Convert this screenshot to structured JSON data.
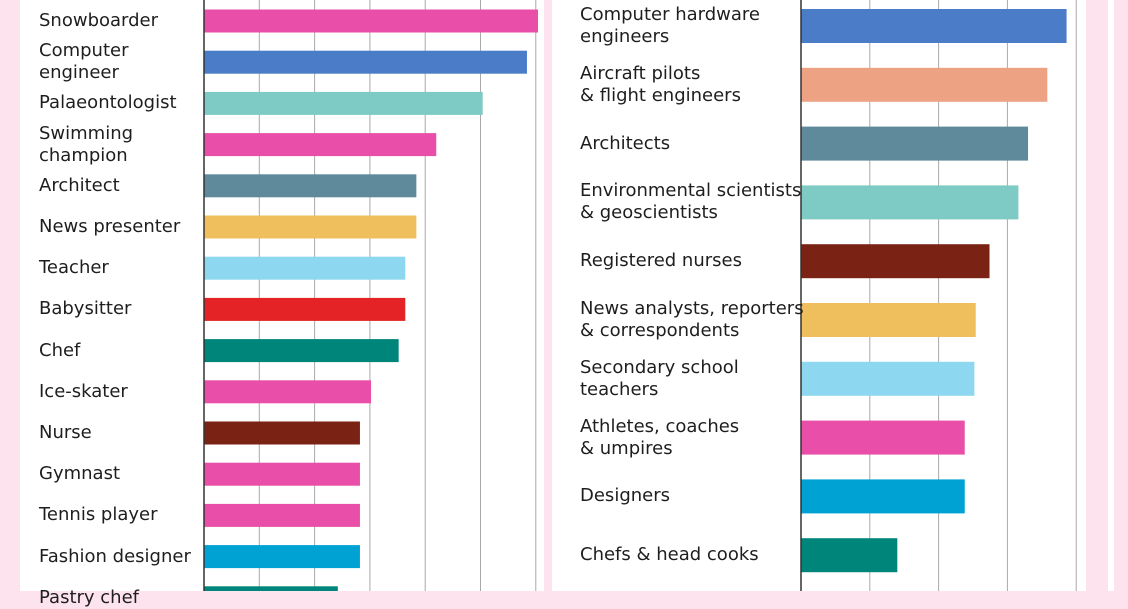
{
  "chart_data": [
    {
      "type": "bar",
      "orientation": "horizontal",
      "xlim": [
        0,
        30
      ],
      "grid": true,
      "categories": [
        "Snowboarder",
        "Computer\nengineer",
        "Palaeontologist",
        "Swimming\nchampion",
        "Architect",
        "News presenter",
        "Teacher",
        "Babysitter",
        "Chef",
        "Ice-skater",
        "Nurse",
        "Gymnast",
        "Tennis player",
        "Fashion designer",
        "Pastry chef"
      ],
      "values": [
        30.2,
        29.2,
        25.2,
        21.0,
        19.2,
        19.2,
        18.2,
        18.2,
        17.6,
        15.1,
        14.1,
        14.1,
        14.1,
        14.1,
        12.1
      ],
      "colors": [
        "#e94fa9",
        "#4a7cc7",
        "#7ecbc6",
        "#e94fa9",
        "#5f8a9c",
        "#efbf5d",
        "#8ed7f0",
        "#e32326",
        "#00857a",
        "#e94fa9",
        "#7a2213",
        "#e94fa9",
        "#e94fa9",
        "#00a2d3",
        "#00857a"
      ]
    },
    {
      "type": "bar",
      "orientation": "horizontal",
      "xlim": [
        0,
        20
      ],
      "grid": true,
      "categories": [
        "Computer hardware\nengineers",
        "Aircraft pilots\n& flight engineers",
        "Architects",
        "Environmental scientists\n& geoscientists",
        "Registered nurses",
        "News analysts, reporters\n& correspondents",
        "Secondary school\nteachers",
        "Athletes, coaches\n& umpires",
        "Designers",
        "Chefs & head cooks"
      ],
      "values": [
        19.3,
        17.9,
        16.5,
        15.8,
        13.7,
        12.7,
        12.6,
        11.9,
        11.9,
        7.0
      ],
      "colors": [
        "#4a7cc7",
        "#eda383",
        "#5f8a9c",
        "#7ecbc6",
        "#7a2213",
        "#efbf5d",
        "#8ed7f0",
        "#e94fa9",
        "#00a2d3",
        "#00857a"
      ]
    }
  ]
}
